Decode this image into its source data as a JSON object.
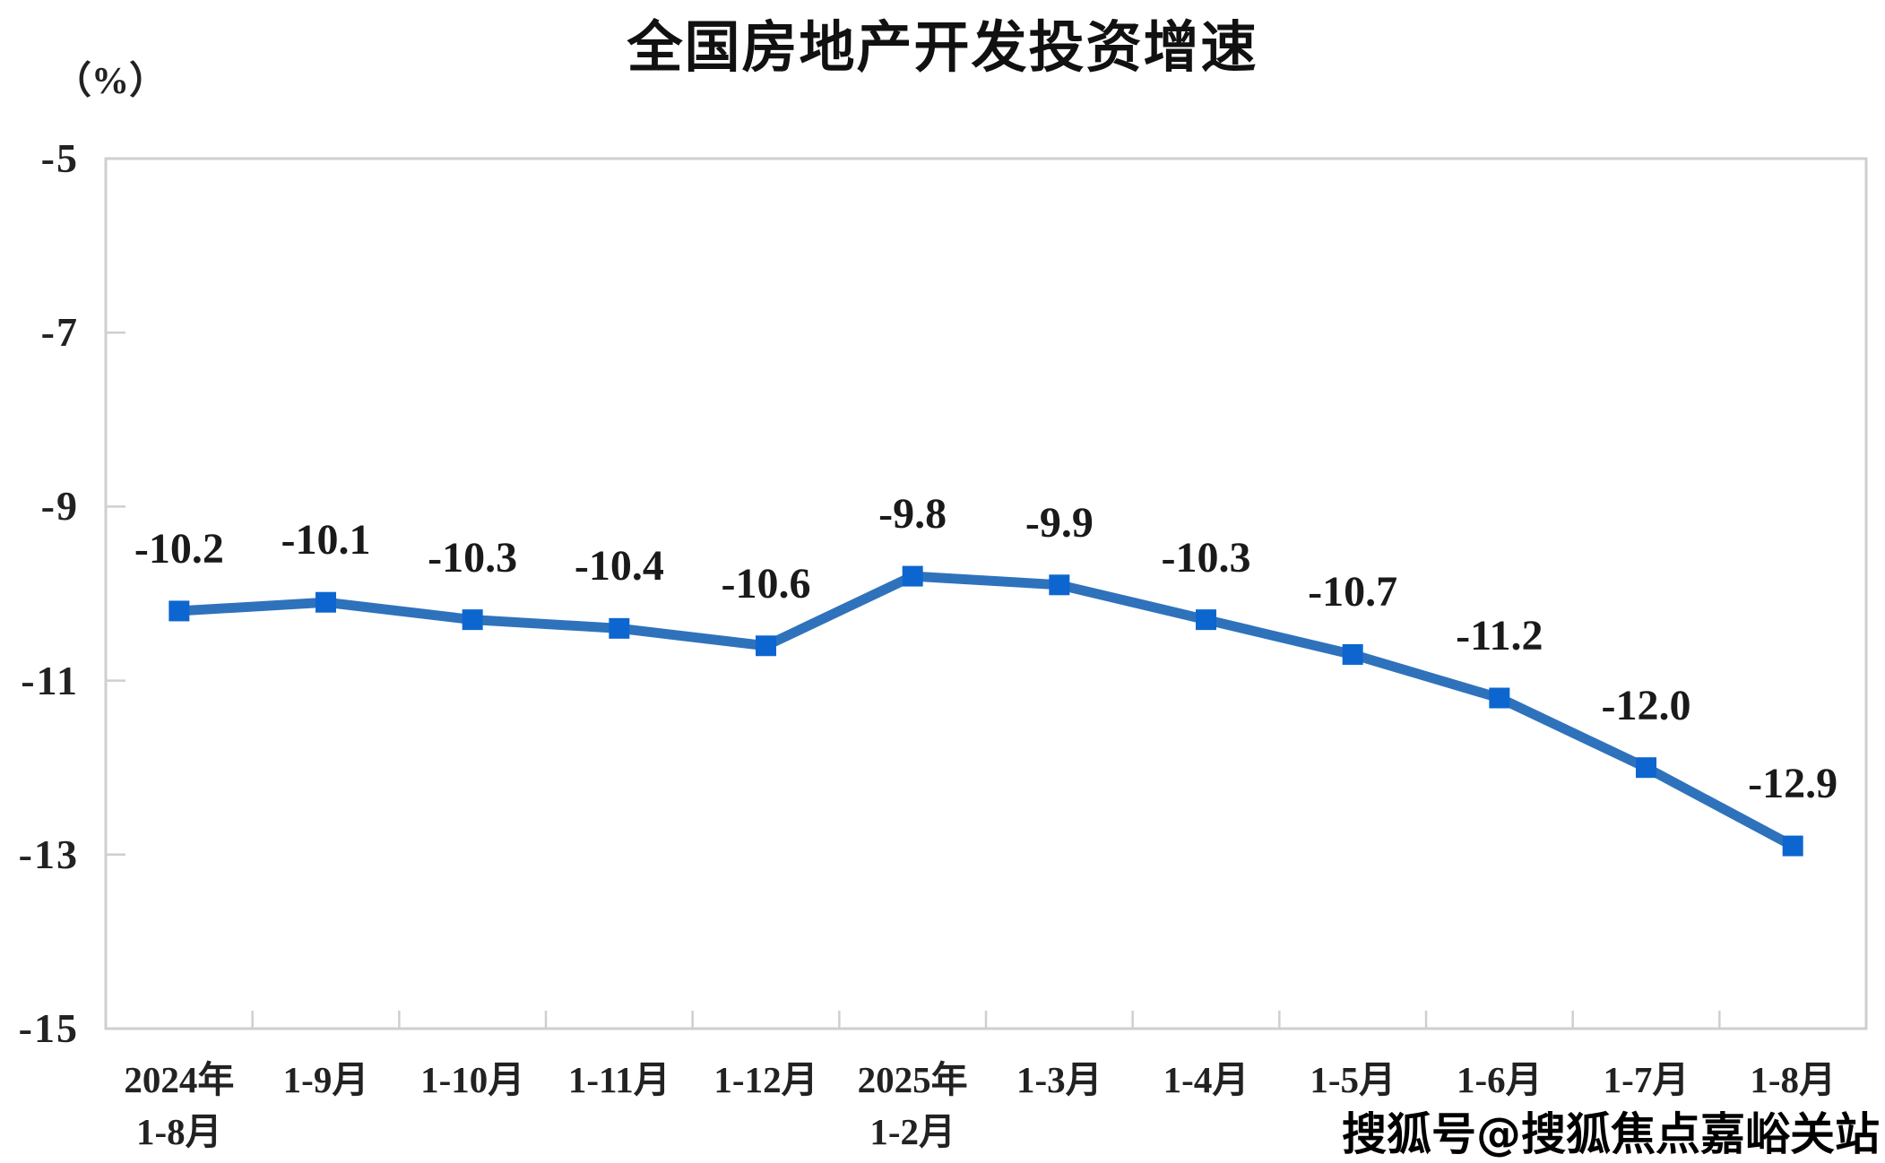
{
  "title": "全国房地产开发投资增速",
  "y_axis_unit": "（%）",
  "watermark": "搜狐号@搜狐焦点嘉峪关站",
  "colors": {
    "line": "#2F72BC",
    "marker": "#0D66D0",
    "axis": "#CFCFCF",
    "text": "#1a1a1a"
  },
  "chart_data": {
    "type": "line",
    "title": "全国房地产开发投资增速",
    "ylabel": "（%）",
    "categories": [
      [
        "2024年",
        "1-8月"
      ],
      [
        "1-9月"
      ],
      [
        "1-10月"
      ],
      [
        "1-11月"
      ],
      [
        "1-12月"
      ],
      [
        "2025年",
        "1-2月"
      ],
      [
        "1-3月"
      ],
      [
        "1-4月"
      ],
      [
        "1-5月"
      ],
      [
        "1-6月"
      ],
      [
        "1-7月"
      ],
      [
        "1-8月"
      ]
    ],
    "values": [
      -10.2,
      -10.1,
      -10.3,
      -10.4,
      -10.6,
      -9.8,
      -9.9,
      -10.3,
      -10.7,
      -11.2,
      -12.0,
      -12.9
    ],
    "point_labels": [
      "-10.2",
      "-10.1",
      "-10.3",
      "-10.4",
      "-10.6",
      "-9.8",
      "-9.9",
      "-10.3",
      "-10.7",
      "-11.2",
      "-12.0",
      "-12.9"
    ],
    "y_ticks": [
      "-5",
      "-7",
      "-9",
      "-11",
      "-13",
      "-15"
    ],
    "ylim": [
      -15,
      -5
    ],
    "grid": false,
    "legend": "none",
    "marker_shape": "square"
  }
}
